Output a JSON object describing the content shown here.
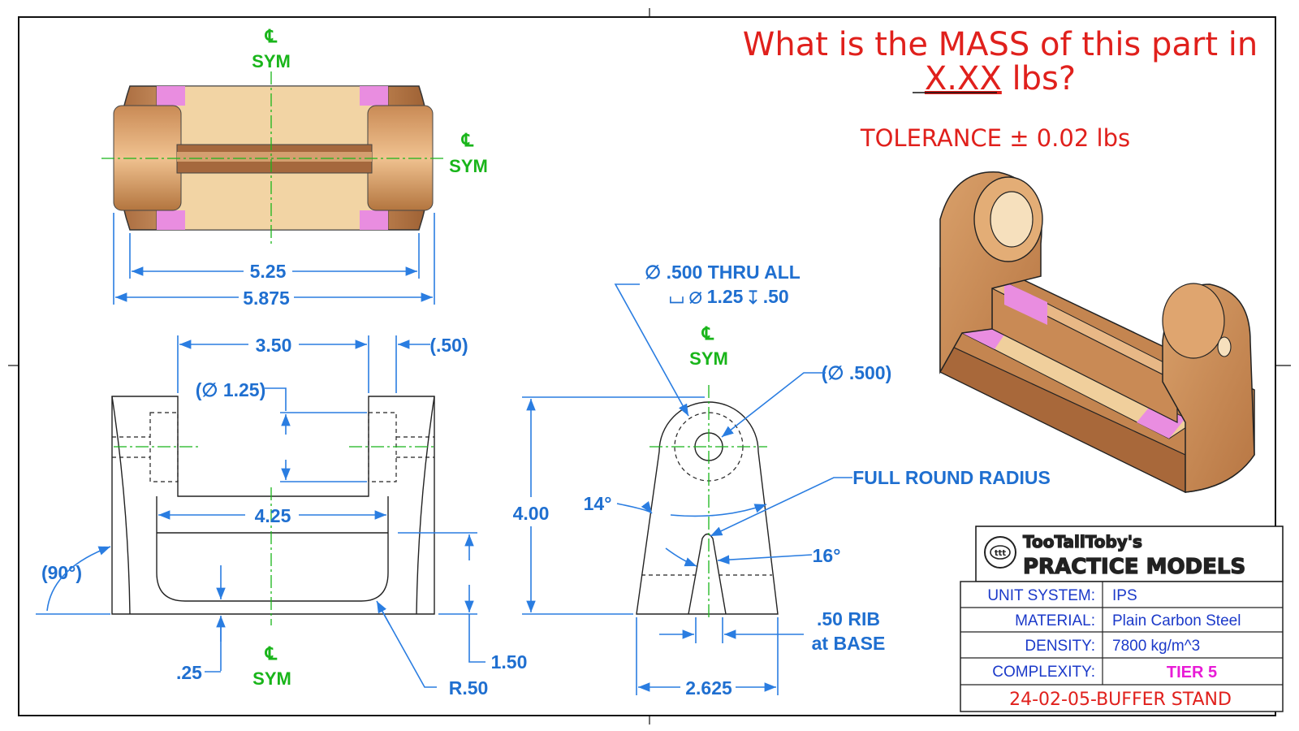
{
  "question": {
    "line1": "What is the MASS of this part in",
    "line2_unit_placeholder": "X.XX",
    "line2_suffix": " lbs?",
    "tolerance": "TOLERANCE ± 0.02 lbs"
  },
  "symbols": {
    "centerline": "℄",
    "sym": "SYM"
  },
  "top_view": {
    "dim_inner": "5.25",
    "dim_outer": "5.875"
  },
  "front_view": {
    "dim_top_span": "3.50",
    "dim_tab": "(.50)",
    "dim_hole": "(∅ 1.25)",
    "dim_inner_width": "4.25",
    "dim_angle": "(90°)",
    "dim_floor": ".25",
    "dim_height": "1.50",
    "dim_radius": "R.50"
  },
  "side_view": {
    "hole_callout_1": "∅ .500 THRU ALL",
    "hole_callout_2": "⌴ ∅ 1.25 ↧ .50",
    "dim_hole_ref": "(∅ .500)",
    "full_round": "FULL ROUND RADIUS",
    "dim_height": "4.00",
    "angle_14": "14°",
    "angle_16": "16°",
    "rib_line1": ".50 RIB",
    "rib_line2": "at BASE",
    "dim_base": "2.625"
  },
  "title_block": {
    "brand_line1": "TooTallToby's",
    "brand_line2": "PRACTICE MODELS",
    "logo_text": "ttt",
    "rows": [
      {
        "label": "UNIT SYSTEM:",
        "value": "IPS"
      },
      {
        "label": "MATERIAL:",
        "value": "Plain Carbon Steel"
      },
      {
        "label": "DENSITY:",
        "value": "7800 kg/m^3"
      },
      {
        "label": "COMPLEXITY:",
        "value": "TIER 5"
      }
    ],
    "drawing_number": "24-02-05-BUFFER STAND"
  },
  "colors": {
    "dimension": "#1f6fd0",
    "centerline": "#19b51a",
    "question": "#e0201c",
    "tier": "#e81bd6",
    "copper": "#d39a65",
    "pink": "#e98de0"
  }
}
